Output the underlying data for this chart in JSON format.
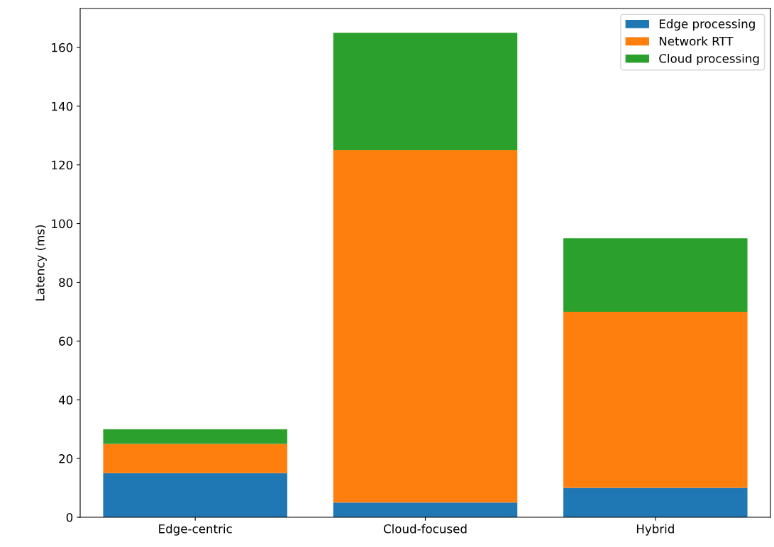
{
  "chart_data": {
    "type": "bar",
    "stacked": true,
    "ylabel": "Latency (ms)",
    "categories": [
      "Edge-centric",
      "Cloud-focused",
      "Hybrid"
    ],
    "series": [
      {
        "name": "Edge processing",
        "color": "#1f77b4",
        "values": [
          15,
          5,
          10
        ]
      },
      {
        "name": "Network RTT",
        "color": "#ff7f0e",
        "values": [
          10,
          120,
          60
        ]
      },
      {
        "name": "Cloud processing",
        "color": "#2ca02c",
        "values": [
          5,
          40,
          25
        ]
      }
    ],
    "ylim": [
      0,
      173.25
    ],
    "yticks": [
      0,
      20,
      40,
      60,
      80,
      100,
      120,
      140,
      160
    ],
    "grid": false,
    "legend": "top right"
  }
}
